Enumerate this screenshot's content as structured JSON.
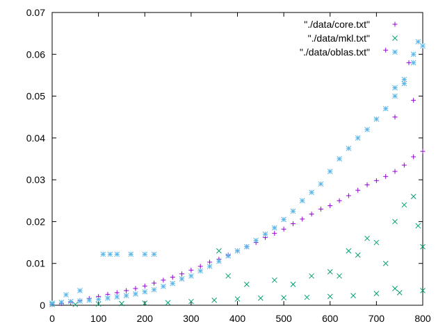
{
  "chart_data": {
    "type": "scatter",
    "title": "",
    "xlabel": "",
    "ylabel": "",
    "xlim": [
      0,
      800
    ],
    "ylim": [
      0,
      0.07
    ],
    "x_ticks": [
      "0",
      "100",
      "200",
      "300",
      "400",
      "500",
      "600",
      "700",
      "800"
    ],
    "y_ticks": [
      "0",
      "0.01",
      "0.02",
      "0.03",
      "0.04",
      "0.05",
      "0.06",
      "0.07"
    ],
    "grid": false,
    "legend_position": "top-right",
    "series": [
      {
        "name": "\"./data/core.txt\"",
        "marker": "plus",
        "color": "#9400d3",
        "x": [
          0,
          20,
          40,
          60,
          80,
          100,
          120,
          140,
          160,
          180,
          200,
          220,
          240,
          260,
          280,
          300,
          320,
          340,
          360,
          380,
          400,
          420,
          440,
          460,
          480,
          500,
          520,
          540,
          560,
          580,
          600,
          620,
          640,
          660,
          680,
          700,
          720,
          740,
          760,
          780,
          800,
          720,
          770,
          780,
          740
        ],
        "y": [
          0.0002,
          0.0004,
          0.0007,
          0.0011,
          0.0016,
          0.0021,
          0.0026,
          0.003,
          0.0035,
          0.004,
          0.0046,
          0.0053,
          0.006,
          0.0067,
          0.0075,
          0.0084,
          0.0093,
          0.0103,
          0.011,
          0.012,
          0.013,
          0.014,
          0.015,
          0.0162,
          0.0172,
          0.0182,
          0.0195,
          0.0206,
          0.0218,
          0.023,
          0.0238,
          0.025,
          0.0262,
          0.0275,
          0.0288,
          0.0298,
          0.0308,
          0.032,
          0.0335,
          0.0355,
          0.0368,
          0.061,
          0.058,
          0.049,
          0.045
        ]
      },
      {
        "name": "\"./data/mkl.txt\"",
        "marker": "cross",
        "color": "#009e73",
        "x": [
          0,
          50,
          100,
          150,
          200,
          250,
          300,
          350,
          400,
          450,
          500,
          550,
          600,
          650,
          700,
          750,
          800,
          360,
          380,
          420,
          480,
          520,
          560,
          600,
          640,
          660,
          700,
          720,
          740,
          760,
          780,
          790,
          800,
          680,
          620,
          740
        ],
        "y": [
          0.0002,
          0.0002,
          0.0003,
          0.0004,
          0.0005,
          0.0006,
          0.0009,
          0.0012,
          0.0015,
          0.0017,
          0.0018,
          0.0019,
          0.0021,
          0.0023,
          0.0028,
          0.003,
          0.0035,
          0.013,
          0.007,
          0.005,
          0.006,
          0.005,
          0.007,
          0.008,
          0.013,
          0.012,
          0.015,
          0.01,
          0.02,
          0.024,
          0.026,
          0.019,
          0.014,
          0.016,
          0.007,
          0.004
        ]
      },
      {
        "name": "\"./data/oblas.txt\"",
        "marker": "star",
        "color": "#56b4e9",
        "x": [
          0,
          20,
          40,
          60,
          80,
          100,
          120,
          140,
          160,
          180,
          200,
          220,
          240,
          260,
          280,
          300,
          320,
          340,
          360,
          380,
          400,
          420,
          440,
          460,
          480,
          500,
          520,
          540,
          560,
          580,
          600,
          620,
          640,
          660,
          680,
          700,
          720,
          740,
          760,
          780,
          800,
          110,
          125,
          140,
          170,
          200,
          220,
          60,
          30,
          780,
          790,
          760,
          740
        ],
        "y": [
          0.0005,
          0.0007,
          0.0009,
          0.001,
          0.0012,
          0.0014,
          0.0017,
          0.002,
          0.0023,
          0.0027,
          0.0032,
          0.0037,
          0.0045,
          0.0052,
          0.0063,
          0.007,
          0.0082,
          0.0093,
          0.0105,
          0.0118,
          0.013,
          0.014,
          0.0155,
          0.017,
          0.0185,
          0.0205,
          0.0225,
          0.025,
          0.027,
          0.029,
          0.032,
          0.035,
          0.0375,
          0.04,
          0.042,
          0.0445,
          0.047,
          0.05,
          0.053,
          0.058,
          0.062,
          0.0122,
          0.0122,
          0.0122,
          0.0122,
          0.0122,
          0.0122,
          0.0035,
          0.0025,
          0.06,
          0.063,
          0.054,
          0.052
        ]
      }
    ]
  }
}
